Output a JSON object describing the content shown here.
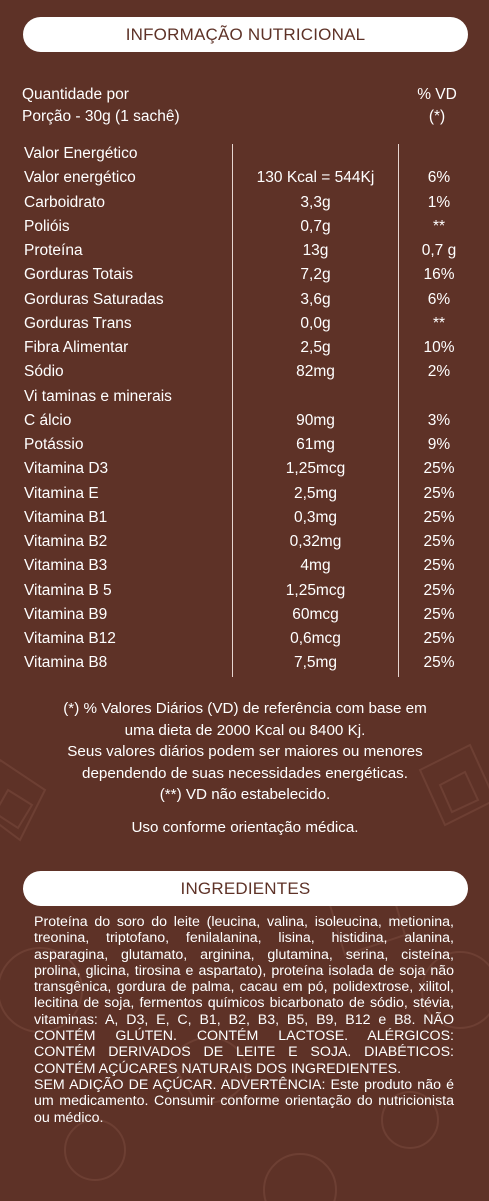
{
  "nutrition": {
    "title": "INFORMAÇÃO NUTRICIONAL",
    "header": {
      "line1_left": "Quantidade por",
      "line1_right": "% VD",
      "line2_left": "Porção - 30g (1 sachê)",
      "line2_right": "(*)"
    },
    "rows": [
      {
        "name": "Valor Energético",
        "amount": "",
        "vd": ""
      },
      {
        "name": "Valor energético",
        "amount": "130 Kcal = 544Kj",
        "vd": "6%"
      },
      {
        "name": "Carboidrato",
        "amount": "3,3g",
        "vd": "1%"
      },
      {
        "name": "Polióis",
        "amount": "0,7g",
        "vd": "**"
      },
      {
        "name": "Proteína",
        "amount": "13g",
        "vd": "0,7 g"
      },
      {
        "name": "Gorduras Totais",
        "amount": "7,2g",
        "vd": "16%"
      },
      {
        "name": "Gorduras Saturadas",
        "amount": "3,6g",
        "vd": "6%"
      },
      {
        "name": "Gorduras Trans",
        "amount": "0,0g",
        "vd": "**"
      },
      {
        "name": "Fibra Alimentar",
        "amount": "2,5g",
        "vd": "10%"
      },
      {
        "name": "Sódio",
        "amount": "82mg",
        "vd": "2%"
      },
      {
        "name": "Vi taminas e minerais",
        "amount": "",
        "vd": ""
      },
      {
        "name": "C álcio",
        "amount": "90mg",
        "vd": "3%"
      },
      {
        "name": "Potássio",
        "amount": "61mg",
        "vd": "9%"
      },
      {
        "name": "Vitamina D3",
        "amount": "1,25mcg",
        "vd": "25%"
      },
      {
        "name": "Vitamina E",
        "amount": "2,5mg",
        "vd": "25%"
      },
      {
        "name": "Vitamina B1",
        "amount": "0,3mg",
        "vd": "25%"
      },
      {
        "name": "Vitamina B2",
        "amount": "0,32mg",
        "vd": "25%"
      },
      {
        "name": "Vitamina B3",
        "amount": "4mg",
        "vd": "25%"
      },
      {
        "name": "Vitamina B 5",
        "amount": "1,25mcg",
        "vd": "25%"
      },
      {
        "name": "Vitamina B9",
        "amount": "60mcg",
        "vd": "25%"
      },
      {
        "name": "Vitamina B12",
        "amount": "0,6mcg",
        "vd": "25%"
      },
      {
        "name": "Vitamina B8",
        "amount": "7,5mg",
        "vd": "25%"
      }
    ],
    "footnotes": [
      "(*) % Valores Diários (VD) de referência com base em",
      "uma dieta de 2000 Kcal ou 8400 Kj.",
      "Seus valores diários podem ser maiores ou menores",
      "dependendo de suas necessidades energéticas.",
      "(**) VD não estabelecido."
    ],
    "usage": "Uso conforme orientação médica."
  },
  "ingredients": {
    "title": "INGREDIENTES",
    "paragraph1": "Proteína do soro do leite (leucina, valina, isoleucina, metionina, treonina, triptofano, fenilalanina, lisina, histidina, alanina, asparagina, glutamato, arginina, glutamina, serina, cisteína, prolina, glicina, tirosina e aspartato), proteína isolada de soja não transgênica, gordura de palma, cacau em pó, polidextrose, xilitol, lecitina de soja, fermentos químicos bicarbonato de sódio, stévia, vitaminas: A, D3, E, C, B1, B2, B3, B5, B9, B12 e B8. NÃO CONTÉM GLÚTEN. CONTÉM LACTOSE. ALÉRGICOS: CONTÉM DERIVADOS DE LEITE E SOJA. DIABÉTICOS: CONTÉM AÇÚCARES NATURAIS DOS INGREDIENTES.",
    "paragraph2": "SEM ADIÇÃO DE AÇÚCAR. ADVERTÊNCIA: Este produto não é um medicamento. Consumir conforme orientação do nutricionista ou médico."
  },
  "colors": {
    "background": "#5e3227",
    "pill": "#ffffff",
    "pill_text": "#5e3227"
  }
}
